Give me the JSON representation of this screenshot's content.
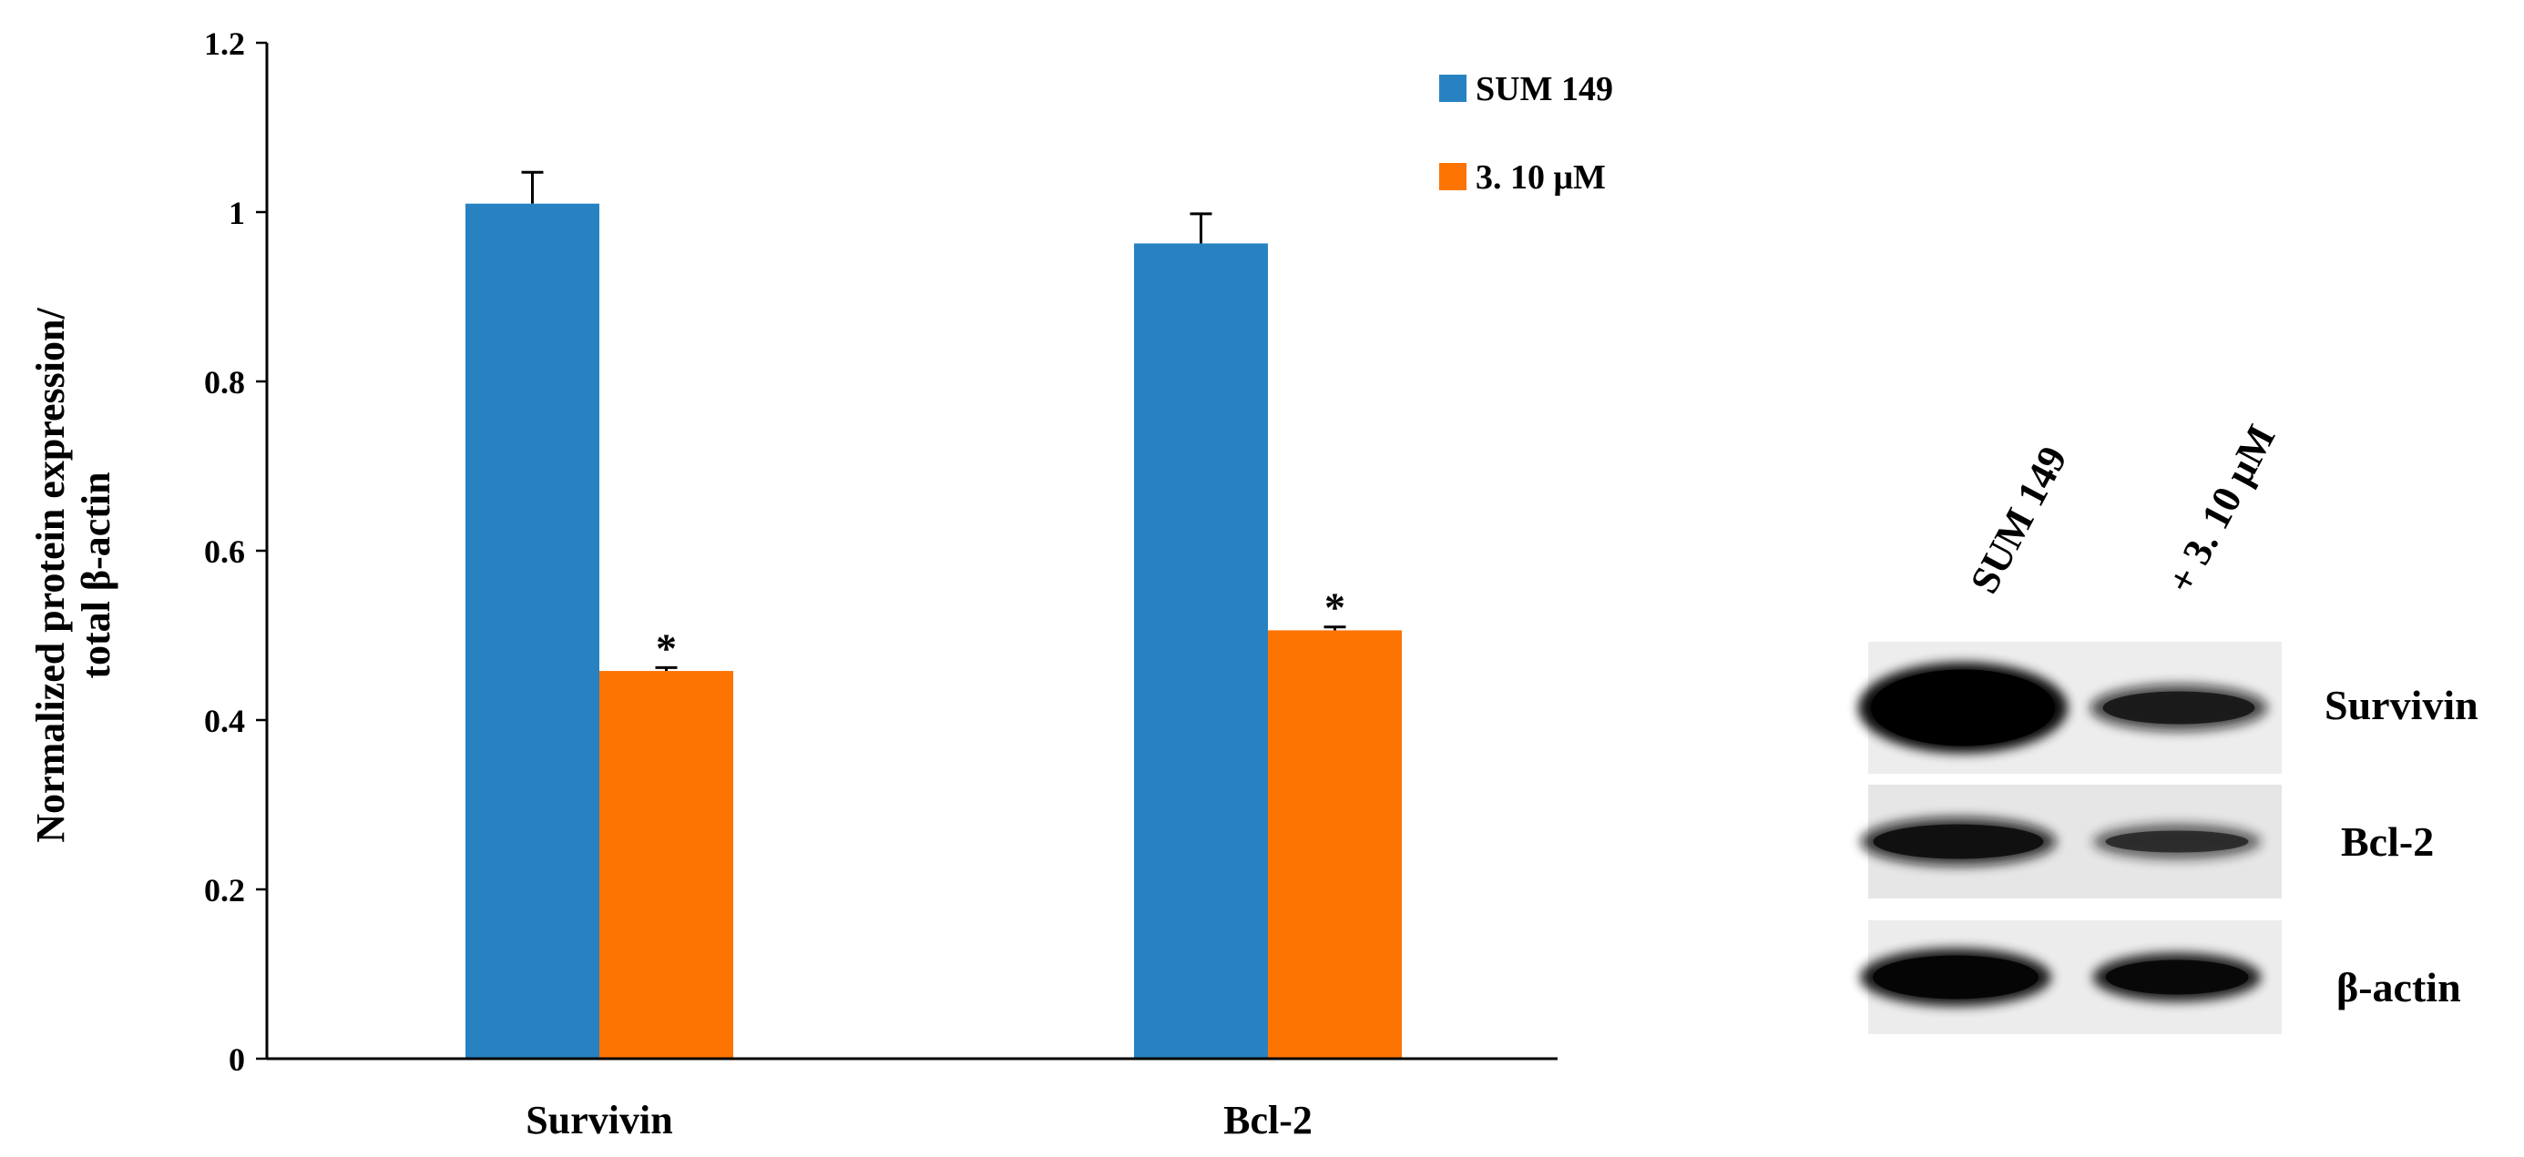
{
  "chart_data": {
    "type": "bar",
    "categories": [
      "Survivin",
      "Bcl-2"
    ],
    "series": [
      {
        "name": "SUM 149",
        "values": [
          1.01,
          0.963
        ],
        "errors": [
          0.037,
          0.035
        ],
        "color": "#2882c2",
        "significance": [
          "",
          ""
        ]
      },
      {
        "name": "3. 10 μM",
        "values": [
          0.458,
          0.506
        ],
        "errors": [
          0.004,
          0.004
        ],
        "color": "#fd7403",
        "significance": [
          "*",
          "*"
        ]
      }
    ],
    "ylabel_lines": [
      "Normalized protein expression/",
      "total β-actin"
    ],
    "xlabel": "",
    "ylim": [
      0,
      1.2
    ],
    "yticks": [
      0,
      0.2,
      0.4,
      0.6,
      0.8,
      1,
      1.2
    ],
    "ytick_labels": [
      "0",
      "0.2",
      "0.4",
      "0.6",
      "0.8",
      "1",
      "1.2"
    ],
    "grid": false,
    "legend_placement": "top-right"
  },
  "western_blot": {
    "lanes": [
      "SUM 149",
      "+ 3. 10 μM"
    ],
    "bands": [
      {
        "protein": "Survivin",
        "intensities": [
          1.0,
          0.62
        ]
      },
      {
        "protein": "Bcl-2",
        "intensities": [
          0.75,
          0.45
        ]
      },
      {
        "protein": "β-actin",
        "intensities": [
          0.9,
          0.85
        ]
      }
    ]
  }
}
